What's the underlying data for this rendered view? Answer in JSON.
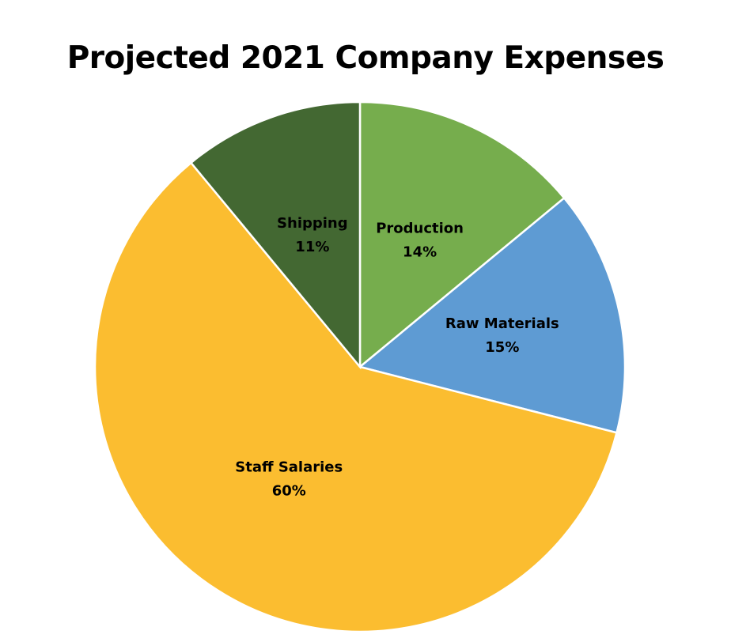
{
  "chart_data": {
    "type": "pie",
    "title": "Projected 2021 Company Expenses",
    "slices": [
      {
        "label": "Production",
        "value": 14,
        "display": "14%",
        "color": "#76AD4D"
      },
      {
        "label": "Raw Materials",
        "value": 15,
        "display": "15%",
        "color": "#5E9BD3"
      },
      {
        "label": "Staff Salaries",
        "value": 60,
        "display": "60%",
        "color": "#FBBD30"
      },
      {
        "label": "Shipping",
        "value": 11,
        "display": "11%",
        "color": "#436832"
      }
    ],
    "start_angle": "12 o'clock",
    "direction": "clockwise",
    "legend": "none",
    "data_labels": "inside"
  }
}
